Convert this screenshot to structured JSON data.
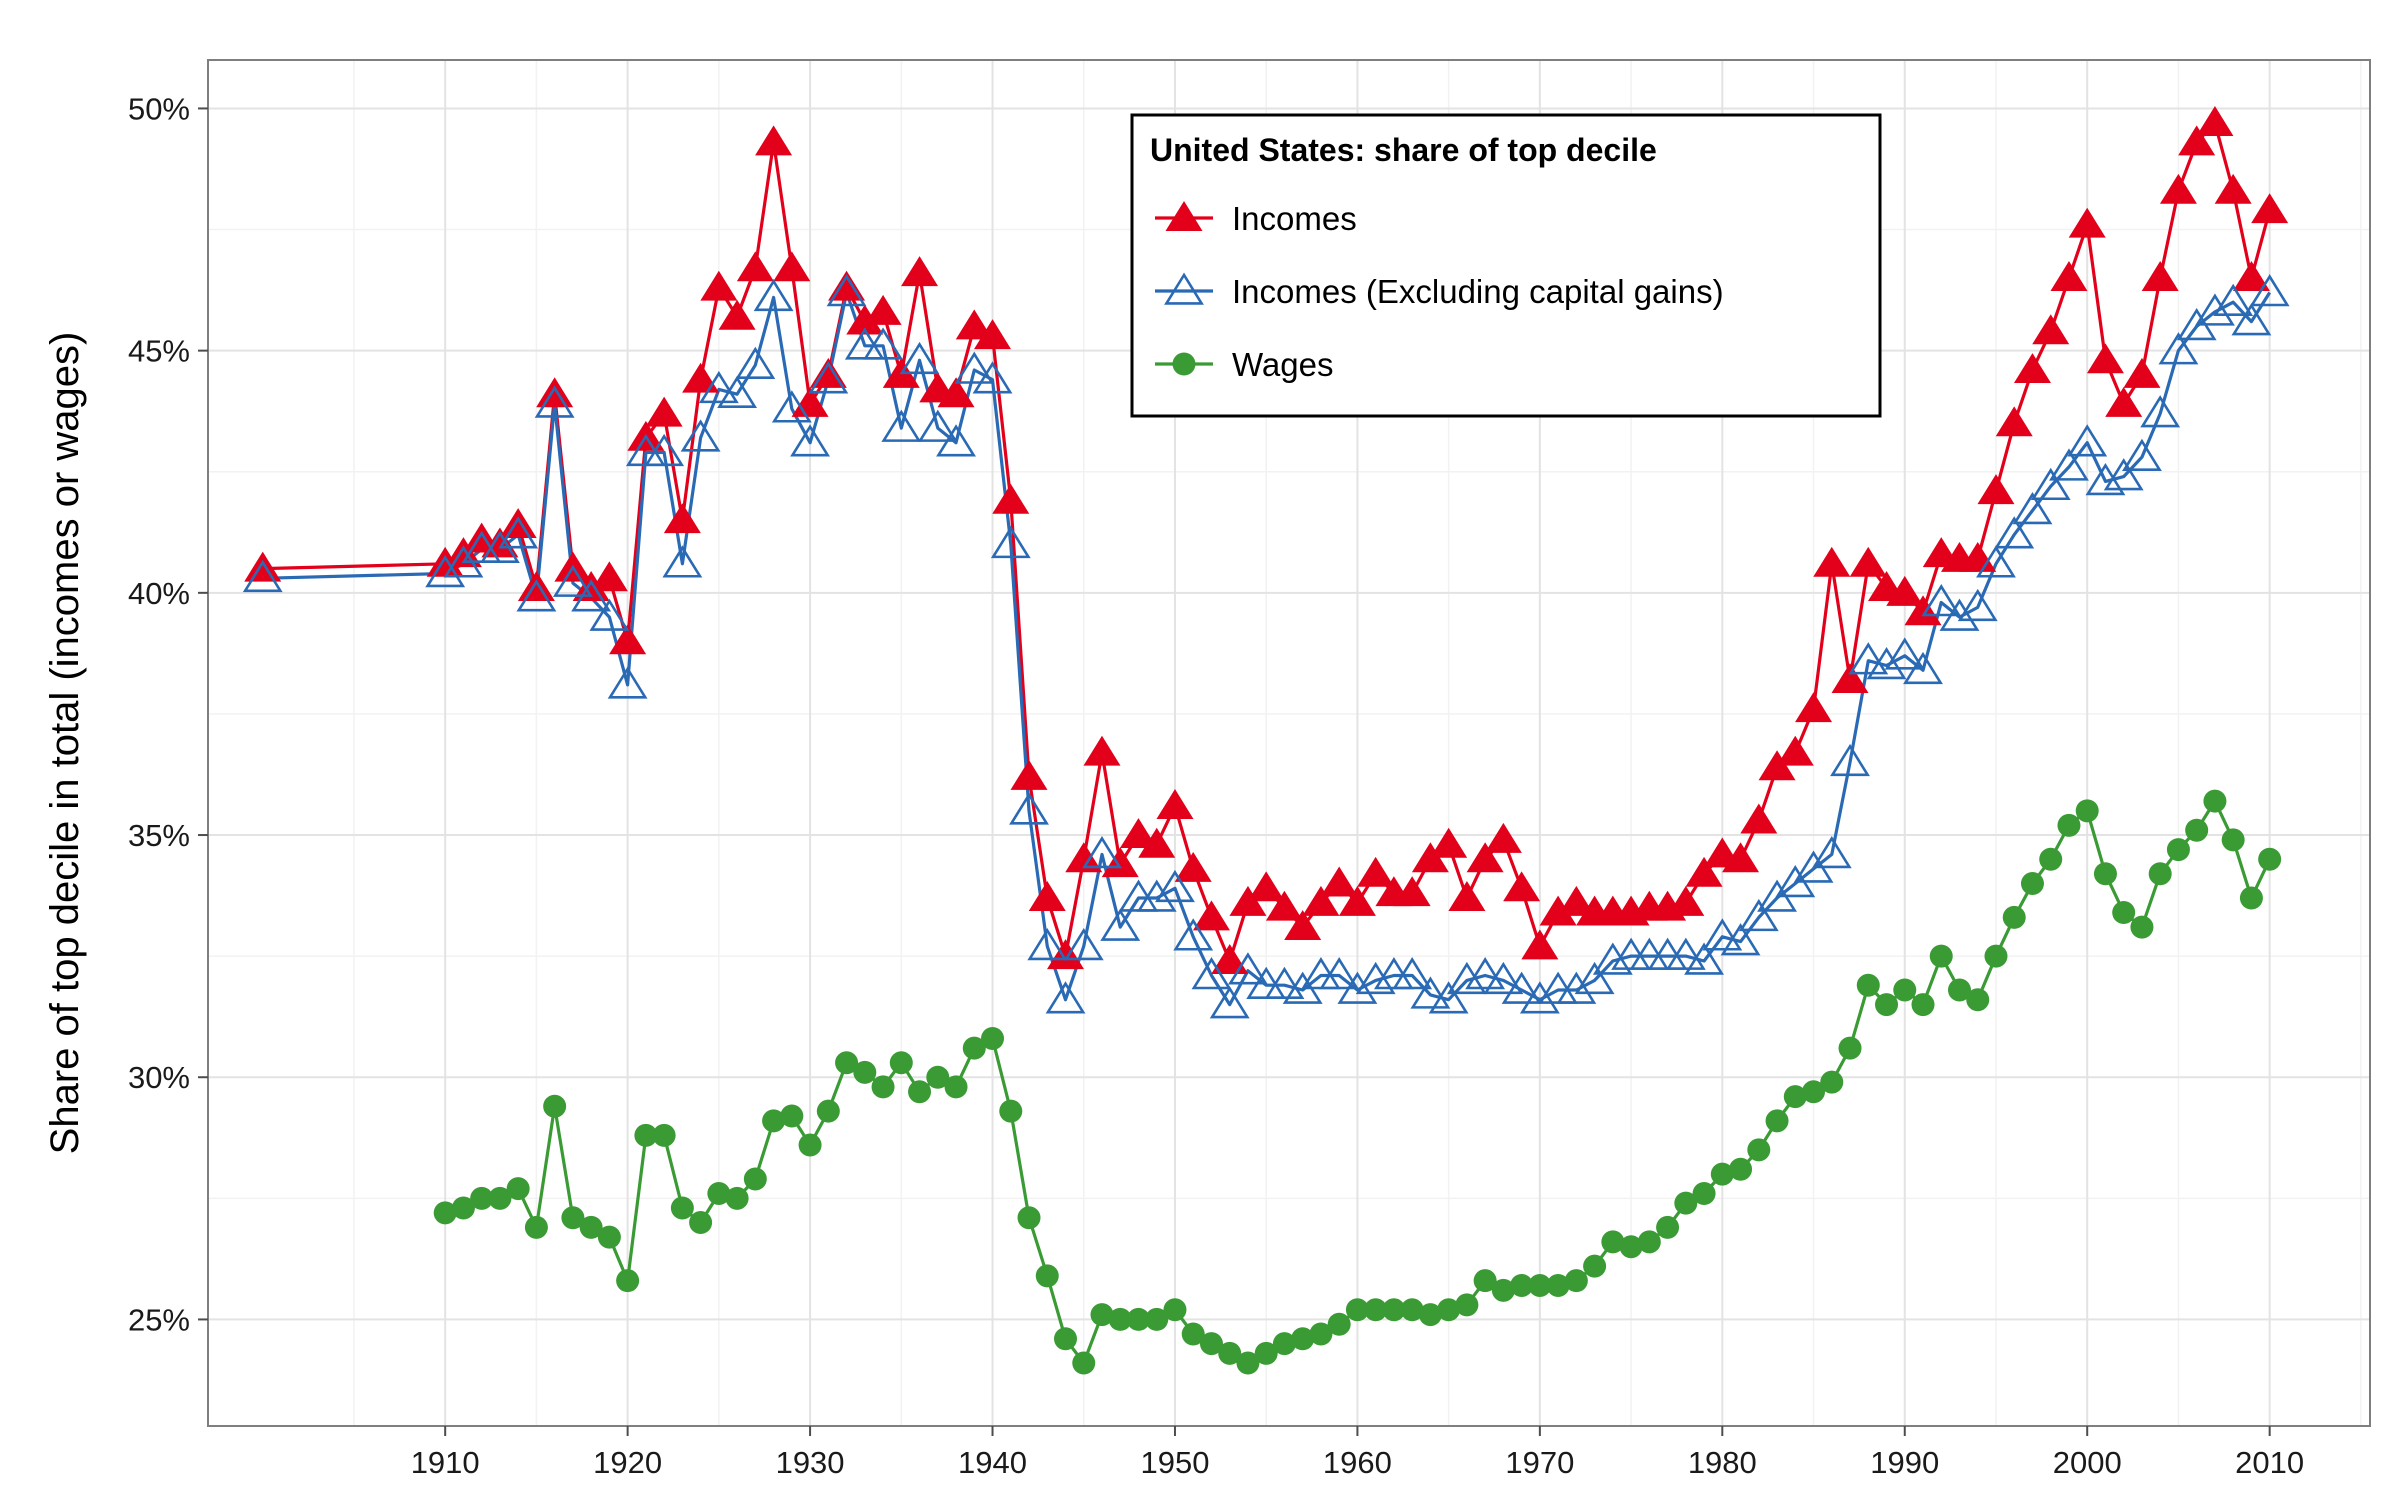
{
  "chart_data": {
    "type": "line",
    "title": "",
    "xlabel": "",
    "ylabel": "Share of top decile in total (incomes or wages)",
    "xlim": [
      1897,
      2015.5
    ],
    "ylim": [
      0.228,
      0.51
    ],
    "x_ticks": [
      1910,
      1920,
      1930,
      1940,
      1950,
      1960,
      1970,
      1980,
      1990,
      2000,
      2010
    ],
    "y_ticks": [
      0.25,
      0.3,
      0.35,
      0.4,
      0.45,
      0.5
    ],
    "y_tick_labels": [
      "25%",
      "30%",
      "35%",
      "40%",
      "45%",
      "50%"
    ],
    "grid": true,
    "legend": {
      "title": "United States: share of top decile",
      "position": "top-center"
    },
    "series": [
      {
        "name": "Incomes",
        "color": "#e3001b",
        "marker": "filled-triangle",
        "x": [
          1900,
          1910,
          1911,
          1912,
          1913,
          1914,
          1915,
          1916,
          1917,
          1918,
          1919,
          1920,
          1921,
          1922,
          1923,
          1924,
          1925,
          1926,
          1927,
          1928,
          1929,
          1930,
          1931,
          1932,
          1933,
          1934,
          1935,
          1936,
          1937,
          1938,
          1939,
          1940,
          1941,
          1942,
          1943,
          1944,
          1945,
          1946,
          1947,
          1948,
          1949,
          1950,
          1951,
          1952,
          1953,
          1954,
          1955,
          1956,
          1957,
          1958,
          1959,
          1960,
          1961,
          1962,
          1963,
          1964,
          1965,
          1966,
          1967,
          1968,
          1969,
          1970,
          1971,
          1972,
          1973,
          1974,
          1975,
          1976,
          1977,
          1978,
          1979,
          1980,
          1981,
          1982,
          1983,
          1984,
          1985,
          1986,
          1987,
          1988,
          1989,
          1990,
          1991,
          1992,
          1993,
          1994,
          1995,
          1996,
          1997,
          1998,
          1999,
          2000,
          2001,
          2002,
          2003,
          2004,
          2005,
          2006,
          2007,
          2008,
          2009,
          2010
        ],
        "values": [
          0.405,
          0.406,
          0.408,
          0.411,
          0.41,
          0.414,
          0.401,
          0.441,
          0.405,
          0.401,
          0.403,
          0.39,
          0.432,
          0.437,
          0.415,
          0.444,
          0.463,
          0.457,
          0.467,
          0.493,
          0.467,
          0.439,
          0.445,
          0.463,
          0.456,
          0.458,
          0.445,
          0.466,
          0.442,
          0.441,
          0.455,
          0.453,
          0.419,
          0.362,
          0.337,
          0.325,
          0.345,
          0.367,
          0.344,
          0.35,
          0.348,
          0.356,
          0.343,
          0.333,
          0.324,
          0.336,
          0.339,
          0.335,
          0.331,
          0.336,
          0.34,
          0.336,
          0.342,
          0.338,
          0.338,
          0.345,
          0.348,
          0.337,
          0.345,
          0.349,
          0.339,
          0.327,
          0.334,
          0.336,
          0.334,
          0.334,
          0.334,
          0.335,
          0.335,
          0.336,
          0.342,
          0.346,
          0.345,
          0.353,
          0.364,
          0.367,
          0.376,
          0.406,
          0.382,
          0.406,
          0.401,
          0.4,
          0.396,
          0.408,
          0.407,
          0.407,
          0.421,
          0.435,
          0.446,
          0.454,
          0.465,
          0.476,
          0.448,
          0.439,
          0.445,
          0.465,
          0.483,
          0.493,
          0.497,
          0.483,
          0.465,
          0.479
        ]
      },
      {
        "name": "Incomes (Excluding capital gains)",
        "color": "#2a6ab5",
        "marker": "open-triangle",
        "x": [
          1900,
          1910,
          1911,
          1912,
          1913,
          1914,
          1915,
          1916,
          1917,
          1918,
          1919,
          1920,
          1921,
          1922,
          1923,
          1924,
          1925,
          1926,
          1927,
          1928,
          1929,
          1930,
          1931,
          1932,
          1933,
          1934,
          1935,
          1936,
          1937,
          1938,
          1939,
          1940,
          1941,
          1942,
          1943,
          1944,
          1945,
          1946,
          1947,
          1948,
          1949,
          1950,
          1951,
          1952,
          1953,
          1954,
          1955,
          1956,
          1957,
          1958,
          1959,
          1960,
          1961,
          1962,
          1963,
          1964,
          1965,
          1966,
          1967,
          1968,
          1969,
          1970,
          1971,
          1972,
          1973,
          1974,
          1975,
          1976,
          1977,
          1978,
          1979,
          1980,
          1981,
          1982,
          1983,
          1984,
          1985,
          1986,
          1987,
          1988,
          1989,
          1990,
          1991,
          1992,
          1993,
          1994,
          1995,
          1996,
          1997,
          1998,
          1999,
          2000,
          2001,
          2002,
          2003,
          2004,
          2005,
          2006,
          2007,
          2008,
          2009,
          2010
        ],
        "values": [
          0.403,
          0.404,
          0.406,
          0.409,
          0.409,
          0.412,
          0.399,
          0.439,
          0.402,
          0.399,
          0.395,
          0.381,
          0.429,
          0.429,
          0.406,
          0.432,
          0.442,
          0.441,
          0.447,
          0.461,
          0.438,
          0.431,
          0.444,
          0.462,
          0.451,
          0.451,
          0.434,
          0.448,
          0.434,
          0.431,
          0.446,
          0.444,
          0.41,
          0.355,
          0.327,
          0.316,
          0.327,
          0.346,
          0.331,
          0.337,
          0.337,
          0.339,
          0.329,
          0.321,
          0.315,
          0.322,
          0.319,
          0.319,
          0.318,
          0.321,
          0.321,
          0.318,
          0.32,
          0.321,
          0.321,
          0.317,
          0.316,
          0.32,
          0.321,
          0.32,
          0.318,
          0.316,
          0.318,
          0.318,
          0.32,
          0.324,
          0.325,
          0.325,
          0.325,
          0.325,
          0.324,
          0.329,
          0.328,
          0.333,
          0.337,
          0.34,
          0.343,
          0.346,
          0.365,
          0.386,
          0.385,
          0.387,
          0.384,
          0.398,
          0.395,
          0.397,
          0.406,
          0.412,
          0.417,
          0.422,
          0.426,
          0.431,
          0.423,
          0.424,
          0.428,
          0.437,
          0.45,
          0.455,
          0.458,
          0.46,
          0.456,
          0.462
        ]
      },
      {
        "name": "Wages",
        "color": "#3a9b35",
        "marker": "filled-circle",
        "x": [
          1910,
          1911,
          1912,
          1913,
          1914,
          1915,
          1916,
          1917,
          1918,
          1919,
          1920,
          1921,
          1922,
          1923,
          1924,
          1925,
          1926,
          1927,
          1928,
          1929,
          1930,
          1931,
          1932,
          1933,
          1934,
          1935,
          1936,
          1937,
          1938,
          1939,
          1940,
          1941,
          1942,
          1943,
          1944,
          1945,
          1946,
          1947,
          1948,
          1949,
          1950,
          1951,
          1952,
          1953,
          1954,
          1955,
          1956,
          1957,
          1958,
          1959,
          1960,
          1961,
          1962,
          1963,
          1964,
          1965,
          1966,
          1967,
          1968,
          1969,
          1970,
          1971,
          1972,
          1973,
          1974,
          1975,
          1976,
          1977,
          1978,
          1979,
          1980,
          1981,
          1982,
          1983,
          1984,
          1985,
          1986,
          1987,
          1988,
          1989,
          1990,
          1991,
          1992,
          1993,
          1994,
          1995,
          1996,
          1997,
          1998,
          1999,
          2000,
          2001,
          2002,
          2003,
          2004,
          2005,
          2006,
          2007,
          2008,
          2009,
          2010
        ],
        "values": [
          0.272,
          0.273,
          0.275,
          0.275,
          0.277,
          0.269,
          0.294,
          0.271,
          0.269,
          0.267,
          0.258,
          0.288,
          0.288,
          0.273,
          0.27,
          0.276,
          0.275,
          0.279,
          0.291,
          0.292,
          0.286,
          0.293,
          0.303,
          0.301,
          0.298,
          0.303,
          0.297,
          0.3,
          0.298,
          0.306,
          0.308,
          0.293,
          0.271,
          0.259,
          0.246,
          0.241,
          0.251,
          0.25,
          0.25,
          0.25,
          0.252,
          0.247,
          0.245,
          0.243,
          0.241,
          0.243,
          0.245,
          0.246,
          0.247,
          0.249,
          0.252,
          0.252,
          0.252,
          0.252,
          0.251,
          0.252,
          0.253,
          0.258,
          0.256,
          0.257,
          0.257,
          0.257,
          0.258,
          0.261,
          0.266,
          0.265,
          0.266,
          0.269,
          0.274,
          0.276,
          0.28,
          0.281,
          0.285,
          0.291,
          0.296,
          0.297,
          0.299,
          0.306,
          0.319,
          0.315,
          0.318,
          0.315,
          0.325,
          0.318,
          0.316,
          0.325,
          0.333,
          0.34,
          0.345,
          0.352,
          0.355,
          0.342,
          0.334,
          0.331,
          0.342,
          0.347,
          0.351,
          0.357,
          0.349,
          0.337,
          0.345
        ]
      }
    ]
  }
}
